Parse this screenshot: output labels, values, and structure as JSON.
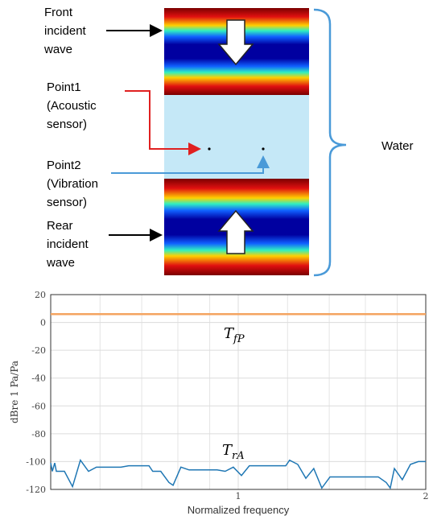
{
  "diagram": {
    "front_label": [
      "Front",
      "incident",
      "wave"
    ],
    "point1_label": [
      "Point1",
      "(Acoustic",
      "sensor)"
    ],
    "point2_label": [
      "Point2",
      "(Vibration",
      "sensor)"
    ],
    "rear_label": [
      "Rear",
      "incident",
      "wave"
    ],
    "water_label": "Water"
  },
  "chart_data": {
    "type": "line",
    "xlabel": "Normalized frequency",
    "ylabel": "dBre 1 Pa/Pa",
    "xscale": "log",
    "xlim": [
      0.5,
      2
    ],
    "ylim": [
      -120,
      20
    ],
    "xticks": [
      1,
      2
    ],
    "x_minor_grid": [
      0.6,
      0.7,
      0.8,
      0.9,
      1.2,
      1.4,
      1.6,
      1.8
    ],
    "yticks": [
      -120,
      -100,
      -80,
      -60,
      -40,
      -20,
      0,
      20
    ],
    "grid": true,
    "series": [
      {
        "label": {
          "base": "T",
          "sub": "fP"
        },
        "color": "#f4a460",
        "x": [
          0.5,
          2
        ],
        "values": [
          6,
          6
        ]
      },
      {
        "label": {
          "base": "T",
          "sub": "rA"
        },
        "color": "#1f77b4",
        "x": [
          0.5,
          0.503,
          0.5075,
          0.5105,
          0.526,
          0.542,
          0.558,
          0.575,
          0.592,
          0.619,
          0.648,
          0.667,
          0.698,
          0.719,
          0.729,
          0.751,
          0.774,
          0.786,
          0.809,
          0.834,
          0.872,
          0.925,
          0.953,
          0.982,
          1.012,
          1.042,
          1.106,
          1.174,
          1.192,
          1.209,
          1.246,
          1.284,
          1.322,
          1.362,
          1.404,
          1.49,
          1.581,
          1.678,
          1.728,
          1.754,
          1.781,
          1.834,
          1.89,
          1.946,
          2.0
        ],
        "values": [
          -101,
          -107,
          -101,
          -107,
          -107,
          -118,
          -99,
          -107,
          -104,
          -104,
          -104,
          -103,
          -103,
          -103,
          -107,
          -107,
          -115,
          -117,
          -104,
          -106,
          -106,
          -106,
          -107,
          -104,
          -110,
          -103,
          -103,
          -103,
          -103,
          -99,
          -102,
          -112,
          -105,
          -119,
          -111,
          -111,
          -111,
          -111,
          -115,
          -119,
          -105,
          -113,
          -102,
          -100,
          -100
        ]
      }
    ]
  }
}
